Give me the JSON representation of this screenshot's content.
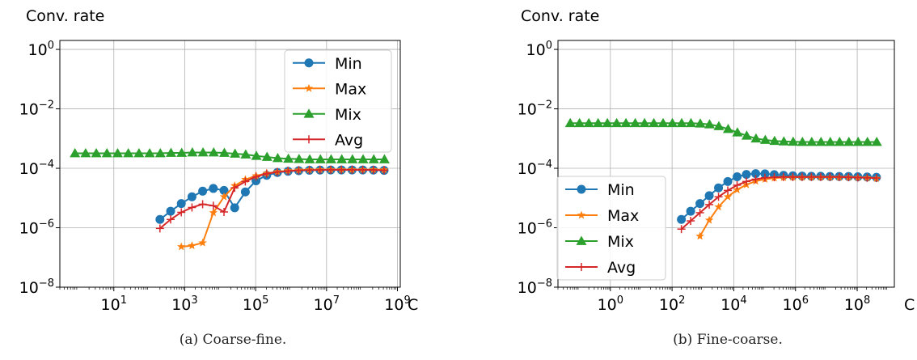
{
  "chart_data": [
    {
      "type": "line",
      "title": "",
      "ylabel": "Conv. rate",
      "xlabel": "C",
      "xscale": "log",
      "yscale": "log",
      "xlim": [
        0.3,
        1200000000.0
      ],
      "ylim": [
        1e-08,
        2.0
      ],
      "yticks": [
        1e-08,
        1e-06,
        0.0001,
        0.01,
        1
      ],
      "ytick_labels": [
        [
          "10",
          "−8"
        ],
        [
          "10",
          "−6"
        ],
        [
          "10",
          "−4"
        ],
        [
          "10",
          "−2"
        ],
        [
          "10",
          "0"
        ]
      ],
      "xticks": [
        10,
        1000,
        100000,
        10000000,
        1000000000
      ],
      "xtick_labels": [
        [
          "10",
          "1"
        ],
        [
          "10",
          "3"
        ],
        [
          "10",
          "5"
        ],
        [
          "10",
          "7"
        ],
        [
          "10",
          "9"
        ]
      ],
      "grid": true,
      "legend_position": "upper-right",
      "caption": "(a)  Coarse-fine.",
      "series": [
        {
          "name": "Min",
          "color": "#1f77b4",
          "marker": "circle",
          "points": [
            [
              200,
              1.9e-06
            ],
            [
              400,
              3.6e-06
            ],
            [
              800,
              6.5e-06
            ],
            [
              1600,
              1.1e-05
            ],
            [
              3200,
              1.7e-05
            ],
            [
              6400,
              2.1e-05
            ],
            [
              12800,
              1.8e-05
            ],
            [
              25600,
              4.7e-06
            ],
            [
              51200,
              1.6e-05
            ],
            [
              102400,
              3.8e-05
            ],
            [
              204800,
              5.8e-05
            ],
            [
              409600,
              7.2e-05
            ],
            [
              819200,
              7.9e-05
            ],
            [
              1638400,
              8.3e-05
            ],
            [
              3276800,
              8.6e-05
            ],
            [
              6553600,
              8.7e-05
            ],
            [
              13107200,
              8.8e-05
            ],
            [
              26214400,
              8.8e-05
            ],
            [
              52428800,
              8.8e-05
            ],
            [
              104857600,
              8.8e-05
            ],
            [
              209715200,
              8.7e-05
            ],
            [
              419430400,
              8.5e-05
            ]
          ]
        },
        {
          "name": "Max",
          "color": "#ff7f0e",
          "marker": "star",
          "points": [
            [
              800,
              2.3e-07
            ],
            [
              1600,
              2.5e-07
            ],
            [
              3200,
              3.1e-07
            ],
            [
              6400,
              3.2e-06
            ],
            [
              12800,
              1.1e-05
            ],
            [
              25600,
              2.6e-05
            ],
            [
              51200,
              4.2e-05
            ],
            [
              102400,
              5.6e-05
            ],
            [
              204800,
              6.8e-05
            ],
            [
              409600,
              7.7e-05
            ],
            [
              819200,
              8.3e-05
            ],
            [
              1638400,
              8.7e-05
            ],
            [
              3276800,
              8.9e-05
            ],
            [
              6553600,
              9e-05
            ],
            [
              13107200,
              9e-05
            ],
            [
              26214400,
              9e-05
            ],
            [
              52428800,
              9e-05
            ],
            [
              104857600,
              9e-05
            ],
            [
              209715200,
              9e-05
            ],
            [
              419430400,
              8.9e-05
            ]
          ]
        },
        {
          "name": "Mix",
          "color": "#2ca02c",
          "marker": "triangle",
          "points": [
            [
              0.8,
              0.00032
            ],
            [
              1.6,
              0.00032
            ],
            [
              3.2,
              0.00032
            ],
            [
              6.4,
              0.00032
            ],
            [
              12.8,
              0.00032
            ],
            [
              25.6,
              0.00032
            ],
            [
              51.2,
              0.00032
            ],
            [
              102.4,
              0.00032
            ],
            [
              204.8,
              0.00032
            ],
            [
              409.6,
              0.00033
            ],
            [
              819.2,
              0.00033
            ],
            [
              1638.4,
              0.00034
            ],
            [
              3276.8,
              0.00034
            ],
            [
              6553.6,
              0.00034
            ],
            [
              13107,
              0.00033
            ],
            [
              26214,
              0.00031
            ],
            [
              52429,
              0.00029
            ],
            [
              104858,
              0.00026
            ],
            [
              209715,
              0.00024
            ],
            [
              419430,
              0.00022
            ],
            [
              838861,
              0.00021
            ],
            [
              1677722,
              0.000205
            ],
            [
              3355443,
              0.0002
            ],
            [
              6710886,
              0.0002
            ],
            [
              13421773,
              0.0002
            ],
            [
              26843546,
              0.0002
            ],
            [
              53687091,
              0.0002
            ],
            [
              107374182,
              0.0002
            ],
            [
              214748365,
              0.0002
            ],
            [
              429496730,
              0.0002
            ]
          ]
        },
        {
          "name": "Avg",
          "color": "#d62728",
          "marker": "plus",
          "points": [
            [
              200,
              9.5e-07
            ],
            [
              400,
              1.9e-06
            ],
            [
              800,
              3.3e-06
            ],
            [
              1600,
              4.8e-06
            ],
            [
              3200,
              6.2e-06
            ],
            [
              6400,
              5.5e-06
            ],
            [
              12800,
              3.4e-06
            ],
            [
              25600,
              2.2e-05
            ],
            [
              51200,
              3.6e-05
            ],
            [
              102400,
              5.2e-05
            ],
            [
              204800,
              6.6e-05
            ],
            [
              409600,
              7.5e-05
            ],
            [
              819200,
              8.1e-05
            ],
            [
              1638400,
              8.5e-05
            ],
            [
              3276800,
              8.7e-05
            ],
            [
              6553600,
              8.8e-05
            ],
            [
              13107200,
              8.9e-05
            ],
            [
              26214400,
              8.9e-05
            ],
            [
              52428800,
              8.9e-05
            ],
            [
              104857600,
              8.9e-05
            ],
            [
              209715200,
              8.8e-05
            ],
            [
              419430400,
              8.6e-05
            ]
          ]
        }
      ]
    },
    {
      "type": "line",
      "title": "",
      "ylabel": "Conv. rate",
      "xlabel": "C",
      "xscale": "log",
      "yscale": "log",
      "xlim": [
        0.02,
        1600000000.0
      ],
      "ylim": [
        1e-08,
        2.0
      ],
      "yticks": [
        1e-08,
        1e-06,
        0.0001,
        0.01,
        1
      ],
      "ytick_labels": [
        [
          "10",
          "−8"
        ],
        [
          "10",
          "−6"
        ],
        [
          "10",
          "−4"
        ],
        [
          "10",
          "−2"
        ],
        [
          "10",
          "0"
        ]
      ],
      "xticks": [
        1,
        100,
        10000,
        1000000,
        100000000
      ],
      "xtick_labels": [
        [
          "10",
          "0"
        ],
        [
          "10",
          "2"
        ],
        [
          "10",
          "4"
        ],
        [
          "10",
          "6"
        ],
        [
          "10",
          "8"
        ]
      ],
      "grid": true,
      "legend_position": "lower-left",
      "caption": "(b)  Fine-coarse.",
      "series": [
        {
          "name": "Min",
          "color": "#1f77b4",
          "marker": "circle",
          "points": [
            [
              200,
              1.9e-06
            ],
            [
              400,
              3.6e-06
            ],
            [
              800,
              6.5e-06
            ],
            [
              1600,
              1.2e-05
            ],
            [
              3200,
              2.2e-05
            ],
            [
              6400,
              3.6e-05
            ],
            [
              12800,
              5.2e-05
            ],
            [
              25600,
              6.2e-05
            ],
            [
              51200,
              6.6e-05
            ],
            [
              102400,
              6.5e-05
            ],
            [
              204800,
              6.1e-05
            ],
            [
              409600,
              5.8e-05
            ],
            [
              819200,
              5.6e-05
            ],
            [
              1638400,
              5.5e-05
            ],
            [
              3276800,
              5.4e-05
            ],
            [
              6553600,
              5.4e-05
            ],
            [
              13107200,
              5.3e-05
            ],
            [
              26214400,
              5.3e-05
            ],
            [
              52428800,
              5.3e-05
            ],
            [
              104857600,
              5.2e-05
            ],
            [
              209715200,
              5.1e-05
            ],
            [
              419430400,
              5e-05
            ]
          ]
        },
        {
          "name": "Max",
          "color": "#ff7f0e",
          "marker": "star",
          "points": [
            [
              800,
              5.2e-07
            ],
            [
              1600,
              1.8e-06
            ],
            [
              3200,
              5e-06
            ],
            [
              6400,
              1.1e-05
            ],
            [
              12800,
              1.9e-05
            ],
            [
              25600,
              2.8e-05
            ],
            [
              51200,
              3.7e-05
            ],
            [
              102400,
              4.3e-05
            ],
            [
              204800,
              4.7e-05
            ],
            [
              409600,
              4.9e-05
            ],
            [
              819200,
              5e-05
            ],
            [
              1638400,
              5e-05
            ],
            [
              3276800,
              5e-05
            ],
            [
              6553600,
              5e-05
            ],
            [
              13107200,
              5e-05
            ],
            [
              26214400,
              5e-05
            ],
            [
              52428800,
              5e-05
            ],
            [
              104857600,
              4.9e-05
            ],
            [
              209715200,
              4.8e-05
            ],
            [
              419430400,
              4.6e-05
            ]
          ]
        },
        {
          "name": "Mix",
          "color": "#2ca02c",
          "marker": "triangle",
          "points": [
            [
              0.05,
              0.0033
            ],
            [
              0.1,
              0.0033
            ],
            [
              0.2,
              0.0033
            ],
            [
              0.4,
              0.0033
            ],
            [
              0.8,
              0.0033
            ],
            [
              1.6,
              0.0033
            ],
            [
              3.2,
              0.0033
            ],
            [
              6.4,
              0.0033
            ],
            [
              12.8,
              0.0033
            ],
            [
              25.6,
              0.0033
            ],
            [
              51.2,
              0.0033
            ],
            [
              102.4,
              0.0033
            ],
            [
              204.8,
              0.0033
            ],
            [
              409.6,
              0.0033
            ],
            [
              819.2,
              0.0032
            ],
            [
              1638.4,
              0.003
            ],
            [
              3276.8,
              0.0026
            ],
            [
              6553.6,
              0.0021
            ],
            [
              13107,
              0.0016
            ],
            [
              26214,
              0.00125
            ],
            [
              52429,
              0.001
            ],
            [
              104858,
              0.0009
            ],
            [
              209715,
              0.00083
            ],
            [
              419430,
              0.0008
            ],
            [
              838861,
              0.00078
            ],
            [
              1677722,
              0.00077
            ],
            [
              3355443,
              0.00077
            ],
            [
              6710886,
              0.00077
            ],
            [
              13421773,
              0.00077
            ],
            [
              26843546,
              0.00077
            ],
            [
              53687091,
              0.00077
            ],
            [
              107374182,
              0.00077
            ],
            [
              214748365,
              0.00077
            ],
            [
              429496730,
              0.00077
            ]
          ]
        },
        {
          "name": "Avg",
          "color": "#d62728",
          "marker": "plus",
          "points": [
            [
              200,
              9e-07
            ],
            [
              400,
              1.7e-06
            ],
            [
              800,
              3.2e-06
            ],
            [
              1600,
              6e-06
            ],
            [
              3200,
              1.1e-05
            ],
            [
              6400,
              1.8e-05
            ],
            [
              12800,
              2.7e-05
            ],
            [
              25600,
              3.6e-05
            ],
            [
              51200,
              4.3e-05
            ],
            [
              102400,
              4.8e-05
            ],
            [
              204800,
              5e-05
            ],
            [
              409600,
              5.1e-05
            ],
            [
              819200,
              5.1e-05
            ],
            [
              1638400,
              5.1e-05
            ],
            [
              3276800,
              5.1e-05
            ],
            [
              6553600,
              5.1e-05
            ],
            [
              13107200,
              5.1e-05
            ],
            [
              26214400,
              5.1e-05
            ],
            [
              52428800,
              5e-05
            ],
            [
              104857600,
              4.9e-05
            ],
            [
              209715200,
              4.8e-05
            ],
            [
              419430400,
              4.7e-05
            ]
          ]
        }
      ]
    }
  ]
}
